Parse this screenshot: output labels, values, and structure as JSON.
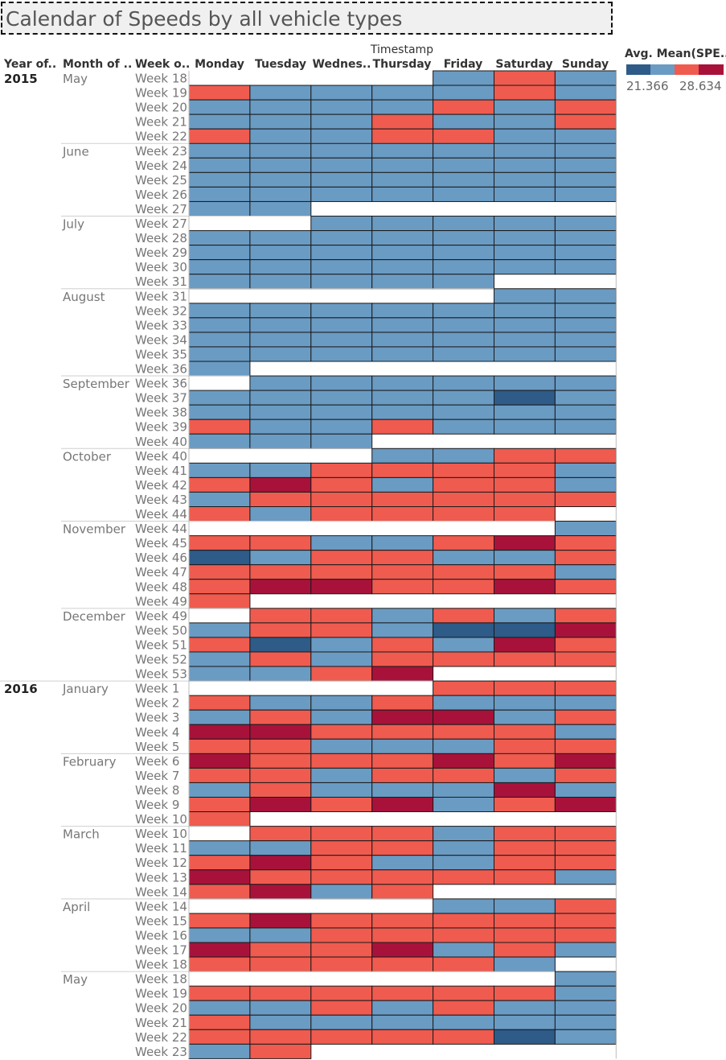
{
  "title": "Calendar of Speeds by all vehicle types",
  "column_group_label": "Timestamp",
  "row_headers": [
    "Year of..",
    "Month of ..",
    "Week o.."
  ],
  "day_headers": [
    "Monday",
    "Tuesday",
    "Wednes..",
    "Thursday",
    "Friday",
    "Saturday",
    "Sunday"
  ],
  "legend": {
    "title": "Avg. Mean(SPE..",
    "min_label": "21.366",
    "max_label": "28.634",
    "colors": [
      "#2e5b88",
      "#6a9bc3",
      "#ef5b4f",
      "#a8123a"
    ]
  },
  "chart_data": {
    "type": "heatmap",
    "title": "Calendar of Speeds by all vehicle types",
    "x_label": "Timestamp",
    "x_categories": [
      "Monday",
      "Tuesday",
      "Wednes..",
      "Thursday",
      "Friday",
      "Saturday",
      "Sunday"
    ],
    "color_legend": "Avg. Mean(SPE..",
    "color_range": [
      21.366,
      28.634
    ],
    "encoding": "0 = empty, 1 = dark blue (lowest), 2 = light blue, 3 = light red, 4 = dark red (highest)",
    "years": [
      {
        "year": "2015",
        "months": [
          {
            "month": "May",
            "rows": [
              {
                "week": "Week 18",
                "cells": [
                  0,
                  0,
                  0,
                  0,
                  2,
                  3,
                  2
                ]
              },
              {
                "week": "Week 19",
                "cells": [
                  3,
                  2,
                  2,
                  2,
                  2,
                  3,
                  2
                ]
              },
              {
                "week": "Week 20",
                "cells": [
                  2,
                  2,
                  2,
                  2,
                  3,
                  2,
                  3
                ]
              },
              {
                "week": "Week 21",
                "cells": [
                  2,
                  2,
                  2,
                  3,
                  2,
                  2,
                  3
                ]
              },
              {
                "week": "Week 22",
                "cells": [
                  3,
                  2,
                  2,
                  3,
                  3,
                  2,
                  2
                ]
              }
            ]
          },
          {
            "month": "June",
            "rows": [
              {
                "week": "Week 23",
                "cells": [
                  2,
                  2,
                  2,
                  2,
                  2,
                  2,
                  2
                ]
              },
              {
                "week": "Week 24",
                "cells": [
                  2,
                  2,
                  2,
                  2,
                  2,
                  2,
                  2
                ]
              },
              {
                "week": "Week 25",
                "cells": [
                  2,
                  2,
                  2,
                  2,
                  2,
                  2,
                  2
                ]
              },
              {
                "week": "Week 26",
                "cells": [
                  2,
                  2,
                  2,
                  2,
                  2,
                  2,
                  2
                ]
              },
              {
                "week": "Week 27",
                "cells": [
                  2,
                  2,
                  0,
                  0,
                  0,
                  0,
                  0
                ]
              }
            ]
          },
          {
            "month": "July",
            "rows": [
              {
                "week": "Week 27",
                "cells": [
                  0,
                  0,
                  2,
                  2,
                  2,
                  2,
                  2
                ]
              },
              {
                "week": "Week 28",
                "cells": [
                  2,
                  2,
                  2,
                  2,
                  2,
                  2,
                  2
                ]
              },
              {
                "week": "Week 29",
                "cells": [
                  2,
                  2,
                  2,
                  2,
                  2,
                  2,
                  2
                ]
              },
              {
                "week": "Week 30",
                "cells": [
                  2,
                  2,
                  2,
                  2,
                  2,
                  2,
                  2
                ]
              },
              {
                "week": "Week 31",
                "cells": [
                  2,
                  2,
                  2,
                  2,
                  2,
                  0,
                  0
                ]
              }
            ]
          },
          {
            "month": "August",
            "rows": [
              {
                "week": "Week 31",
                "cells": [
                  0,
                  0,
                  0,
                  0,
                  0,
                  2,
                  2
                ]
              },
              {
                "week": "Week 32",
                "cells": [
                  2,
                  2,
                  2,
                  2,
                  2,
                  2,
                  2
                ]
              },
              {
                "week": "Week 33",
                "cells": [
                  2,
                  2,
                  2,
                  2,
                  2,
                  2,
                  2
                ]
              },
              {
                "week": "Week 34",
                "cells": [
                  2,
                  2,
                  2,
                  2,
                  2,
                  2,
                  2
                ]
              },
              {
                "week": "Week 35",
                "cells": [
                  2,
                  2,
                  2,
                  2,
                  2,
                  2,
                  2
                ]
              },
              {
                "week": "Week 36",
                "cells": [
                  2,
                  0,
                  0,
                  0,
                  0,
                  0,
                  0
                ]
              }
            ]
          },
          {
            "month": "September",
            "rows": [
              {
                "week": "Week 36",
                "cells": [
                  0,
                  2,
                  2,
                  2,
                  2,
                  2,
                  2
                ]
              },
              {
                "week": "Week 37",
                "cells": [
                  2,
                  2,
                  2,
                  2,
                  2,
                  1,
                  2
                ]
              },
              {
                "week": "Week 38",
                "cells": [
                  2,
                  2,
                  2,
                  2,
                  2,
                  2,
                  2
                ]
              },
              {
                "week": "Week 39",
                "cells": [
                  3,
                  2,
                  2,
                  3,
                  2,
                  2,
                  2
                ]
              },
              {
                "week": "Week 40",
                "cells": [
                  2,
                  2,
                  2,
                  0,
                  0,
                  0,
                  0
                ]
              }
            ]
          },
          {
            "month": "October",
            "rows": [
              {
                "week": "Week 40",
                "cells": [
                  0,
                  0,
                  0,
                  2,
                  2,
                  3,
                  3
                ]
              },
              {
                "week": "Week 41",
                "cells": [
                  2,
                  2,
                  3,
                  3,
                  3,
                  3,
                  2
                ]
              },
              {
                "week": "Week 42",
                "cells": [
                  3,
                  4,
                  3,
                  2,
                  3,
                  3,
                  2
                ]
              },
              {
                "week": "Week 43",
                "cells": [
                  2,
                  3,
                  3,
                  3,
                  3,
                  3,
                  3
                ]
              },
              {
                "week": "Week 44",
                "cells": [
                  3,
                  2,
                  3,
                  3,
                  3,
                  3,
                  0
                ]
              }
            ]
          },
          {
            "month": "November",
            "rows": [
              {
                "week": "Week 44",
                "cells": [
                  0,
                  0,
                  0,
                  0,
                  0,
                  0,
                  2
                ]
              },
              {
                "week": "Week 45",
                "cells": [
                  3,
                  3,
                  2,
                  2,
                  3,
                  4,
                  3
                ]
              },
              {
                "week": "Week 46",
                "cells": [
                  1,
                  2,
                  3,
                  3,
                  2,
                  2,
                  3
                ]
              },
              {
                "week": "Week 47",
                "cells": [
                  3,
                  3,
                  3,
                  3,
                  3,
                  3,
                  2
                ]
              },
              {
                "week": "Week 48",
                "cells": [
                  3,
                  4,
                  4,
                  3,
                  3,
                  4,
                  3
                ]
              },
              {
                "week": "Week 49",
                "cells": [
                  3,
                  0,
                  0,
                  0,
                  0,
                  0,
                  0
                ]
              }
            ]
          },
          {
            "month": "December",
            "rows": [
              {
                "week": "Week 49",
                "cells": [
                  0,
                  3,
                  3,
                  2,
                  3,
                  2,
                  3
                ]
              },
              {
                "week": "Week 50",
                "cells": [
                  2,
                  3,
                  3,
                  2,
                  1,
                  1,
                  4
                ]
              },
              {
                "week": "Week 51",
                "cells": [
                  3,
                  1,
                  2,
                  3,
                  2,
                  4,
                  3
                ]
              },
              {
                "week": "Week 52",
                "cells": [
                  2,
                  3,
                  2,
                  3,
                  3,
                  3,
                  3
                ]
              },
              {
                "week": "Week 53",
                "cells": [
                  2,
                  2,
                  3,
                  4,
                  0,
                  0,
                  0
                ]
              }
            ]
          }
        ]
      },
      {
        "year": "2016",
        "months": [
          {
            "month": "January",
            "rows": [
              {
                "week": "Week 1",
                "cells": [
                  0,
                  0,
                  0,
                  0,
                  3,
                  3,
                  3
                ]
              },
              {
                "week": "Week 2",
                "cells": [
                  3,
                  2,
                  2,
                  3,
                  2,
                  2,
                  2
                ]
              },
              {
                "week": "Week 3",
                "cells": [
                  2,
                  3,
                  2,
                  4,
                  4,
                  2,
                  3
                ]
              },
              {
                "week": "Week 4",
                "cells": [
                  4,
                  4,
                  3,
                  3,
                  3,
                  3,
                  2
                ]
              },
              {
                "week": "Week 5",
                "cells": [
                  3,
                  3,
                  2,
                  2,
                  2,
                  3,
                  3
                ]
              }
            ]
          },
          {
            "month": "February",
            "rows": [
              {
                "week": "Week 6",
                "cells": [
                  4,
                  3,
                  3,
                  3,
                  4,
                  3,
                  4
                ]
              },
              {
                "week": "Week 7",
                "cells": [
                  3,
                  3,
                  2,
                  3,
                  3,
                  2,
                  3
                ]
              },
              {
                "week": "Week 8",
                "cells": [
                  2,
                  3,
                  2,
                  2,
                  2,
                  4,
                  2
                ]
              },
              {
                "week": "Week 9",
                "cells": [
                  3,
                  4,
                  3,
                  4,
                  2,
                  3,
                  4
                ]
              },
              {
                "week": "Week 10",
                "cells": [
                  3,
                  0,
                  0,
                  0,
                  0,
                  0,
                  0
                ]
              }
            ]
          },
          {
            "month": "March",
            "rows": [
              {
                "week": "Week 10",
                "cells": [
                  0,
                  3,
                  3,
                  3,
                  2,
                  3,
                  3
                ]
              },
              {
                "week": "Week 11",
                "cells": [
                  2,
                  2,
                  3,
                  3,
                  2,
                  3,
                  3
                ]
              },
              {
                "week": "Week 12",
                "cells": [
                  3,
                  4,
                  3,
                  2,
                  2,
                  3,
                  3
                ]
              },
              {
                "week": "Week 13",
                "cells": [
                  4,
                  3,
                  3,
                  3,
                  3,
                  3,
                  2
                ]
              },
              {
                "week": "Week 14",
                "cells": [
                  3,
                  4,
                  2,
                  3,
                  0,
                  0,
                  0
                ]
              }
            ]
          },
          {
            "month": "April",
            "rows": [
              {
                "week": "Week 14",
                "cells": [
                  0,
                  0,
                  0,
                  0,
                  2,
                  2,
                  3
                ]
              },
              {
                "week": "Week 15",
                "cells": [
                  3,
                  4,
                  3,
                  3,
                  3,
                  3,
                  3
                ]
              },
              {
                "week": "Week 16",
                "cells": [
                  2,
                  2,
                  3,
                  3,
                  3,
                  3,
                  3
                ]
              },
              {
                "week": "Week 17",
                "cells": [
                  4,
                  3,
                  3,
                  4,
                  2,
                  3,
                  2
                ]
              },
              {
                "week": "Week 18",
                "cells": [
                  3,
                  3,
                  3,
                  3,
                  3,
                  2,
                  0
                ]
              }
            ]
          },
          {
            "month": "May",
            "rows": [
              {
                "week": "Week 18",
                "cells": [
                  0,
                  0,
                  0,
                  0,
                  0,
                  0,
                  2
                ]
              },
              {
                "week": "Week 19",
                "cells": [
                  3,
                  3,
                  3,
                  3,
                  3,
                  3,
                  2
                ]
              },
              {
                "week": "Week 20",
                "cells": [
                  2,
                  2,
                  3,
                  2,
                  3,
                  2,
                  2
                ]
              },
              {
                "week": "Week 21",
                "cells": [
                  3,
                  2,
                  2,
                  2,
                  2,
                  2,
                  2
                ]
              },
              {
                "week": "Week 22",
                "cells": [
                  3,
                  3,
                  3,
                  3,
                  3,
                  1,
                  2
                ]
              },
              {
                "week": "Week 23",
                "cells": [
                  2,
                  3,
                  0,
                  0,
                  0,
                  0,
                  0
                ]
              }
            ]
          }
        ]
      }
    ]
  }
}
